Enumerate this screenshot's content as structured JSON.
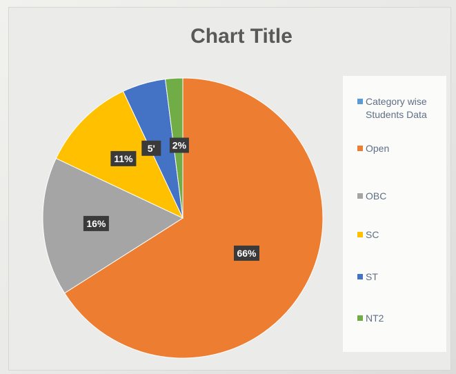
{
  "chart_data": {
    "type": "pie",
    "title": "Chart Title",
    "legend_title": "Category wise Students Data",
    "legend_position": "right",
    "categories": [
      "Open",
      "OBC",
      "SC",
      "ST",
      "NT2"
    ],
    "values": [
      66,
      16,
      11,
      5,
      2
    ],
    "data_labels": [
      "66%",
      "16%",
      "11%",
      "5'",
      "2%"
    ],
    "colors": [
      "#ed7d31",
      "#a5a5a5",
      "#ffc000",
      "#4472c4",
      "#70ad47"
    ],
    "legend_title_color": "#5b9bd5"
  }
}
